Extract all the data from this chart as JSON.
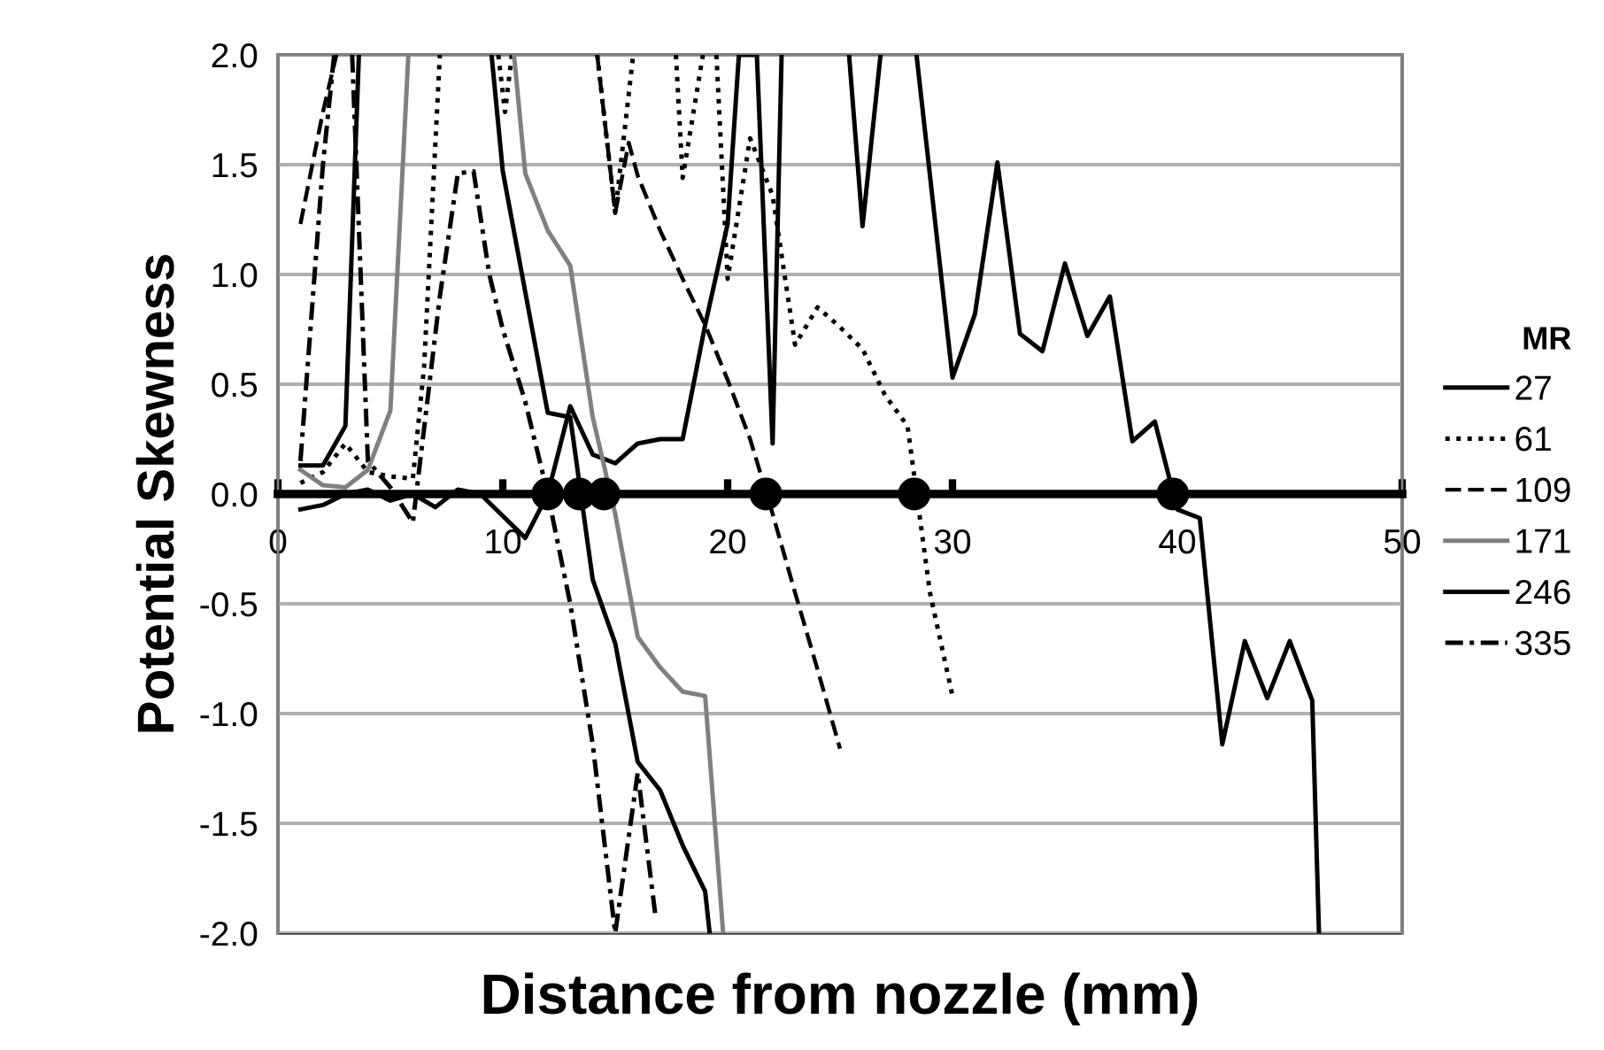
{
  "chart_data": {
    "type": "line",
    "xlabel": "Distance from nozzle (mm)",
    "ylabel": "Potential Skewness",
    "legend_title": "MR",
    "legend": "right",
    "grid": "y",
    "xlim": [
      0,
      50
    ],
    "xticks": [
      0,
      10,
      20,
      30,
      40,
      50
    ],
    "ylim": [
      -2.0,
      2.0
    ],
    "yticks": [
      {
        "value": -2.0,
        "label": "-2.0"
      },
      {
        "value": -1.5,
        "label": "-1.5"
      },
      {
        "value": -1.0,
        "label": "-1.0"
      },
      {
        "value": -0.5,
        "label": "-0.5"
      },
      {
        "value": 0.0,
        "label": "0.0"
      },
      {
        "value": 0.5,
        "label": "0.5"
      },
      {
        "value": 1.0,
        "label": "1.0"
      },
      {
        "value": 1.5,
        "label": "1.5"
      },
      {
        "value": 2.0,
        "label": "2.0"
      }
    ],
    "series": [
      {
        "name": "27",
        "color": "#000000",
        "line_style": "solid",
        "x": [
          1,
          2,
          3,
          4,
          5,
          6,
          7,
          8,
          9,
          10,
          11,
          12,
          13,
          14,
          15,
          16,
          17,
          18,
          19,
          20,
          20.5,
          21.3,
          22,
          22.4,
          null,
          25.4,
          26,
          26.8,
          null,
          28.4,
          30,
          31,
          32,
          33,
          34,
          35,
          36,
          37,
          38,
          39,
          40,
          41,
          42,
          43,
          44,
          45,
          46,
          46.3
        ],
        "values": [
          -0.07,
          -0.05,
          0.0,
          0.02,
          -0.03,
          0.0,
          -0.06,
          0.02,
          0.0,
          -0.1,
          -0.2,
          0.0,
          0.4,
          0.18,
          0.14,
          0.23,
          0.25,
          0.25,
          0.77,
          1.23,
          2.0,
          2.0,
          0.23,
          2.0,
          null,
          2.0,
          1.22,
          2.0,
          null,
          2.0,
          0.53,
          0.82,
          1.51,
          0.73,
          0.65,
          1.05,
          0.72,
          0.9,
          0.24,
          0.33,
          -0.07,
          -0.11,
          -1.14,
          -0.67,
          -0.93,
          -0.67,
          -0.94,
          -2.0
        ]
      },
      {
        "name": "61",
        "color": "#000000",
        "line_style": "dotted",
        "x": [
          1,
          2,
          3,
          4,
          5,
          6,
          6.5,
          7.2,
          null,
          9.8,
          10.1,
          10.4,
          null,
          14.2,
          15,
          15.8,
          null,
          17.7,
          18,
          18.9,
          null,
          19.5,
          20,
          21,
          22,
          23,
          24,
          25,
          26,
          27,
          28,
          29,
          30
        ],
        "values": [
          0.05,
          0.1,
          0.23,
          0.1,
          0.08,
          0.07,
          0.58,
          2.0,
          null,
          2.0,
          1.74,
          2.0,
          null,
          2.0,
          1.28,
          2.0,
          null,
          2.0,
          1.44,
          2.0,
          null,
          2.0,
          0.98,
          1.62,
          1.36,
          0.68,
          0.85,
          0.76,
          0.66,
          0.45,
          0.31,
          -0.45,
          -0.92
        ]
      },
      {
        "name": "109",
        "color": "#000000",
        "line_style": "dashed",
        "x": [
          1,
          2,
          2.6,
          null,
          14.2,
          15,
          15.6,
          16,
          17,
          18,
          19,
          20,
          21,
          22,
          23,
          24,
          25
        ],
        "values": [
          1.23,
          1.74,
          2.0,
          null,
          2.0,
          1.28,
          1.6,
          1.45,
          1.2,
          0.98,
          0.77,
          0.52,
          0.25,
          -0.09,
          -0.45,
          -0.8,
          -1.16
        ]
      },
      {
        "name": "171",
        "color": "#808080",
        "line_style": "solid",
        "x": [
          1,
          2,
          3,
          4,
          5,
          5.8,
          null,
          10.5,
          11,
          12,
          13,
          14,
          15,
          16,
          17,
          18,
          19,
          19.8
        ],
        "values": [
          0.11,
          0.04,
          0.03,
          0.11,
          0.38,
          2.0,
          null,
          2.0,
          1.46,
          1.2,
          1.04,
          0.35,
          -0.09,
          -0.65,
          -0.79,
          -0.9,
          -0.92,
          -2.0
        ]
      },
      {
        "name": "246",
        "color": "#000000",
        "line_style": "solid",
        "x": [
          1,
          2,
          3,
          3.6,
          null,
          9.5,
          10,
          11,
          12,
          13,
          14,
          15,
          16,
          17,
          18,
          19,
          19.2
        ],
        "values": [
          0.13,
          0.13,
          0.31,
          2.0,
          null,
          2.0,
          1.47,
          0.92,
          0.37,
          0.35,
          -0.39,
          -0.68,
          -1.22,
          -1.35,
          -1.6,
          -1.81,
          -2.0
        ]
      },
      {
        "name": "335",
        "color": "#000000",
        "line_style": "dashdot",
        "x": [
          1,
          2,
          2.5,
          null,
          3.3,
          4,
          5,
          6,
          7.2,
          8,
          8.7,
          9.4,
          10,
          11,
          12,
          13,
          14,
          15,
          16,
          16.8
        ],
        "values": [
          0.15,
          1.5,
          2.0,
          null,
          2.0,
          0.15,
          0.03,
          -0.13,
          0.9,
          1.46,
          1.47,
          1.0,
          0.75,
          0.42,
          0.0,
          -0.5,
          -1.14,
          -2.0,
          -1.27,
          -1.93
        ]
      },
      {
        "type": "scatter",
        "marker": "circle",
        "color": "#000000",
        "x": [
          12.0,
          13.4,
          14.5,
          21.7,
          28.3,
          39.8
        ],
        "values": [
          0,
          0,
          0,
          0,
          0,
          0
        ]
      }
    ]
  }
}
